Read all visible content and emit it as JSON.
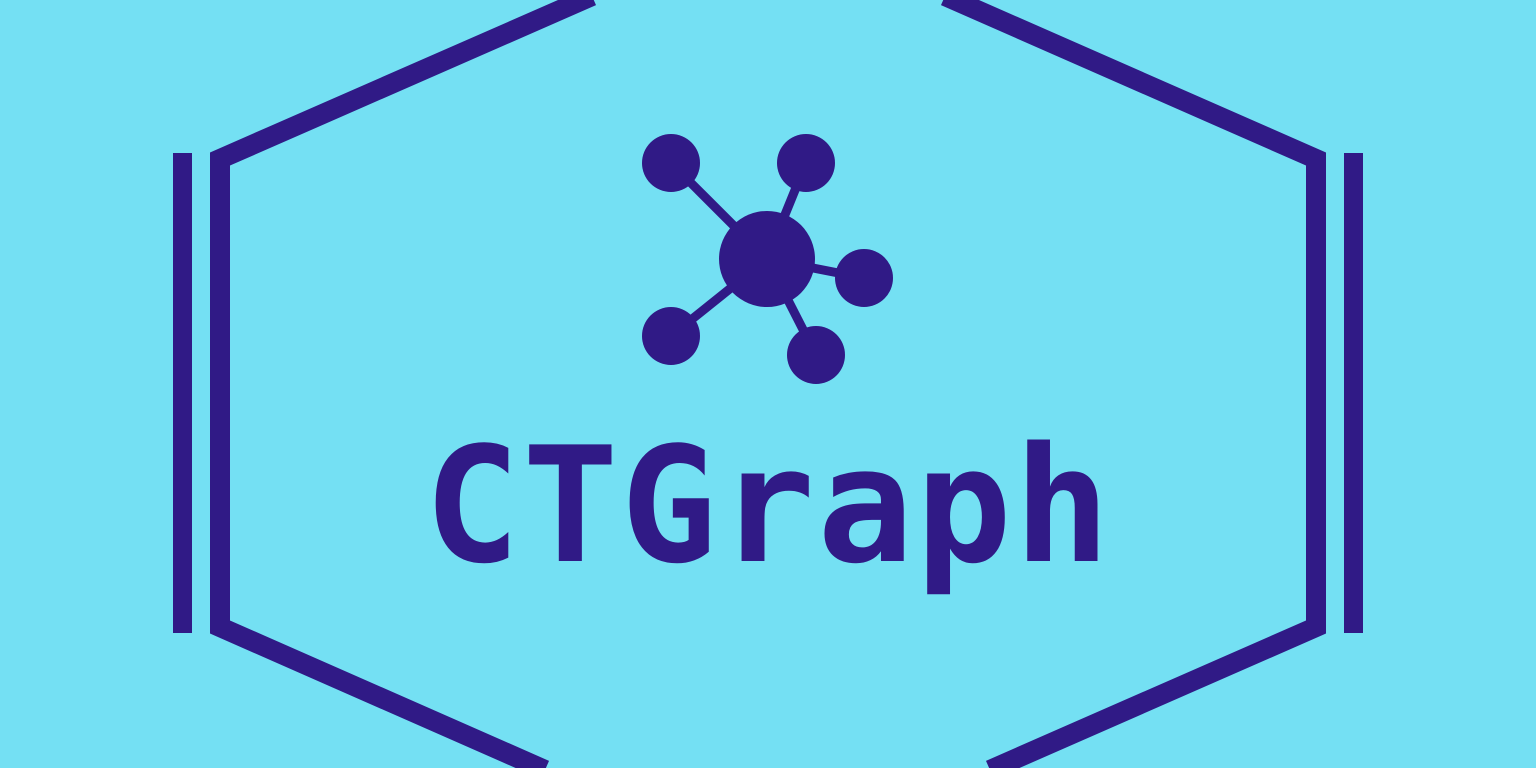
{
  "logo": {
    "wordmark": "CTGraph",
    "icon": "molecule-network-icon"
  },
  "colors": {
    "background": "#74e0f3",
    "foreground": "#301a86"
  }
}
